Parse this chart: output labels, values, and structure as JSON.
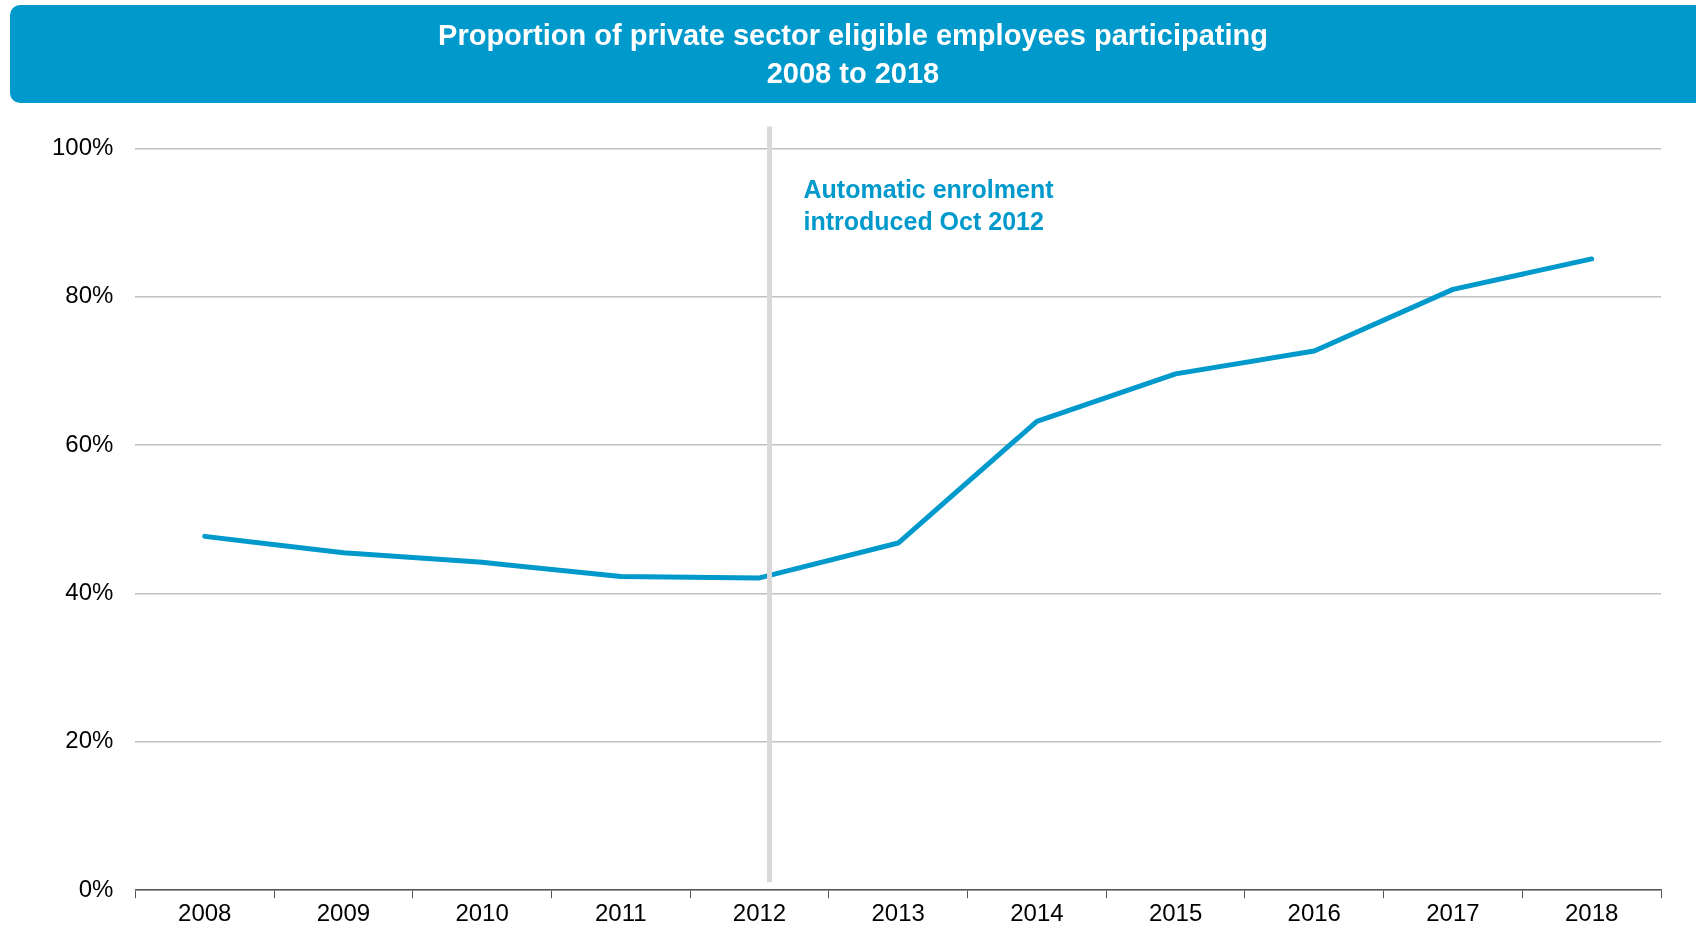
{
  "chart_data": {
    "type": "line",
    "title": "Proportion of private sector eligible employees participating",
    "subtitle": "2008 to 2018",
    "categories": [
      "2008",
      "2009",
      "2010",
      "2011",
      "2012",
      "2013",
      "2014",
      "2015",
      "2016",
      "2017",
      "2018"
    ],
    "series": [
      {
        "color": "#0099cc",
        "values": [
          47.7,
          45.5,
          44.2,
          42.3,
          42.1,
          46.8,
          63.2,
          69.6,
          72.7,
          81.0,
          85.1
        ]
      }
    ],
    "ylim": [
      0,
      100
    ],
    "yticks": [
      {
        "value": 0,
        "label": "0%"
      },
      {
        "value": 20,
        "label": "20%"
      },
      {
        "value": 40,
        "label": "40%"
      },
      {
        "value": 60,
        "label": "60%"
      },
      {
        "value": 80,
        "label": "80%"
      },
      {
        "value": 100,
        "label": "100%"
      }
    ],
    "ref_lines": [
      {
        "axis": "x",
        "value": "2012",
        "label": "Automatic enrolment introduced Oct 2012",
        "color": "#d9d9d9"
      }
    ],
    "grid": "y",
    "legend": false,
    "marker": "none",
    "line_style": "solid"
  }
}
